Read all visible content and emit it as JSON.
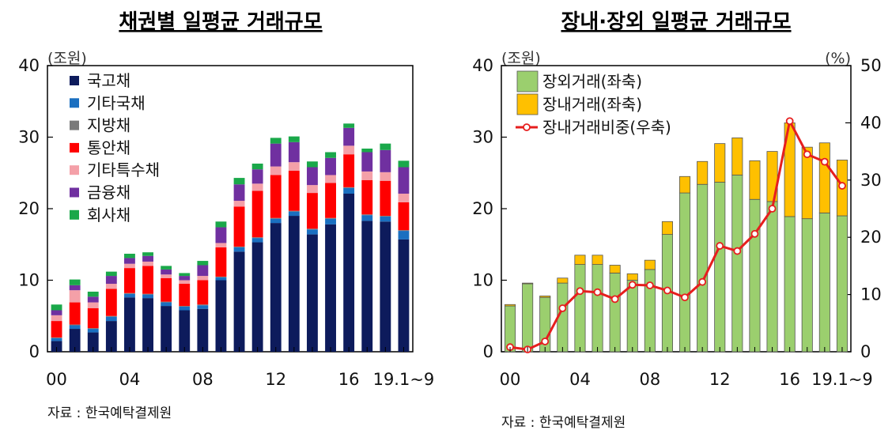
{
  "chart_data": [
    {
      "type": "bar",
      "stacked": true,
      "title": "채권별 일평균 거래규모",
      "unit_label": "(조원)",
      "categories": [
        "00",
        "01",
        "02",
        "03",
        "04",
        "05",
        "06",
        "07",
        "08",
        "09",
        "10",
        "11",
        "12",
        "13",
        "14",
        "15",
        "16",
        "17",
        "18",
        "19.1~9"
      ],
      "x_tick_labels": [
        "00",
        "04",
        "08",
        "12",
        "16",
        "19.1~9"
      ],
      "ylim": [
        0,
        40
      ],
      "y_ticks": [
        0,
        10,
        20,
        30,
        40
      ],
      "legend_position": "top-left",
      "series": [
        {
          "name": "국고채",
          "color": "#0d1b5c",
          "values": [
            1.5,
            3.2,
            2.7,
            4.3,
            7.6,
            7.5,
            6.4,
            5.8,
            6.0,
            10.0,
            14.0,
            15.3,
            18.0,
            19.0,
            16.4,
            17.8,
            22.1,
            18.3,
            18.2,
            15.7
          ]
        },
        {
          "name": "기타국채",
          "color": "#1a6fc0",
          "values": [
            0.4,
            0.5,
            0.5,
            0.6,
            0.5,
            0.5,
            0.5,
            0.5,
            0.5,
            0.4,
            0.6,
            0.6,
            0.6,
            0.6,
            0.7,
            0.8,
            0.8,
            0.8,
            0.7,
            1.2
          ]
        },
        {
          "name": "지방채",
          "color": "#7a7a7a",
          "values": [
            0.1,
            0.1,
            0.1,
            0.1,
            0.1,
            0.1,
            0.1,
            0.1,
            0.1,
            0.1,
            0.1,
            0.1,
            0.1,
            0.1,
            0.1,
            0.1,
            0.1,
            0.1,
            0.1,
            0.1
          ]
        },
        {
          "name": "통안채",
          "color": "#ff0000",
          "values": [
            2.3,
            3.1,
            2.8,
            3.8,
            3.5,
            3.9,
            3.3,
            3.1,
            3.4,
            4.1,
            5.6,
            6.5,
            6.0,
            5.6,
            5.0,
            4.9,
            4.6,
            4.8,
            4.9,
            3.9
          ]
        },
        {
          "name": "기타특수채",
          "color": "#f4a0a8",
          "values": [
            0.8,
            1.7,
            0.8,
            0.7,
            0.6,
            0.6,
            0.5,
            0.5,
            0.6,
            0.6,
            0.8,
            1.0,
            1.2,
            1.2,
            1.1,
            1.1,
            1.2,
            1.2,
            1.2,
            1.2
          ]
        },
        {
          "name": "금융채",
          "color": "#7030a0",
          "values": [
            0.7,
            0.7,
            0.8,
            1.1,
            0.8,
            0.8,
            0.7,
            0.6,
            1.5,
            2.2,
            2.3,
            2.0,
            3.2,
            2.8,
            2.5,
            2.4,
            2.5,
            2.7,
            3.1,
            3.7
          ]
        },
        {
          "name": "회사채",
          "color": "#1aa84a",
          "values": [
            0.8,
            0.8,
            0.7,
            0.6,
            0.6,
            0.5,
            0.5,
            0.4,
            0.6,
            0.8,
            0.9,
            0.8,
            0.8,
            0.8,
            0.8,
            0.8,
            0.6,
            0.5,
            0.9,
            0.9
          ]
        }
      ]
    },
    {
      "type": "bar+line",
      "title": "장내·장외 일평균 거래규모",
      "unit_label_left": "(조원)",
      "unit_label_right": "(%)",
      "categories": [
        "00",
        "01",
        "02",
        "03",
        "04",
        "05",
        "06",
        "07",
        "08",
        "09",
        "10",
        "11",
        "12",
        "13",
        "14",
        "15",
        "16",
        "17",
        "18",
        "19.1~9"
      ],
      "x_tick_labels": [
        "00",
        "04",
        "08",
        "12",
        "16",
        "19.1~9"
      ],
      "ylim": [
        0,
        40
      ],
      "y_ticks": [
        0,
        10,
        20,
        30,
        40
      ],
      "y2lim": [
        0,
        50
      ],
      "y2_ticks": [
        0,
        10,
        20,
        30,
        40,
        50
      ],
      "legend_position": "top-left",
      "series": [
        {
          "name": "장외거래(좌축)",
          "kind": "bar",
          "axis": "left",
          "color": "#9bcf6e",
          "values": [
            6.4,
            9.5,
            7.6,
            9.6,
            12.2,
            12.2,
            11.0,
            10.0,
            11.5,
            16.4,
            22.2,
            23.4,
            23.7,
            24.7,
            21.3,
            21.0,
            18.9,
            18.6,
            19.4,
            19.0
          ]
        },
        {
          "name": "장내거래(좌축)",
          "kind": "bar",
          "axis": "left",
          "color": "#ffc000",
          "values": [
            0.2,
            0.1,
            0.2,
            0.7,
            1.3,
            1.3,
            1.1,
            0.9,
            1.3,
            1.8,
            2.3,
            3.2,
            5.4,
            5.2,
            5.4,
            7.0,
            13.1,
            10.0,
            9.8,
            7.8
          ]
        },
        {
          "name": "장내거래비중(우축)",
          "kind": "line",
          "axis": "right",
          "color": "#e61e1e",
          "values": [
            0.8,
            0.4,
            1.8,
            7.6,
            10.6,
            10.4,
            9.2,
            11.7,
            11.6,
            10.7,
            9.5,
            12.2,
            18.5,
            17.6,
            20.6,
            25.0,
            40.3,
            34.5,
            33.2,
            29.0
          ]
        }
      ]
    }
  ],
  "sources": [
    "자료 : 한국예탁결제원",
    "자료 : 한국예탁결제원"
  ]
}
